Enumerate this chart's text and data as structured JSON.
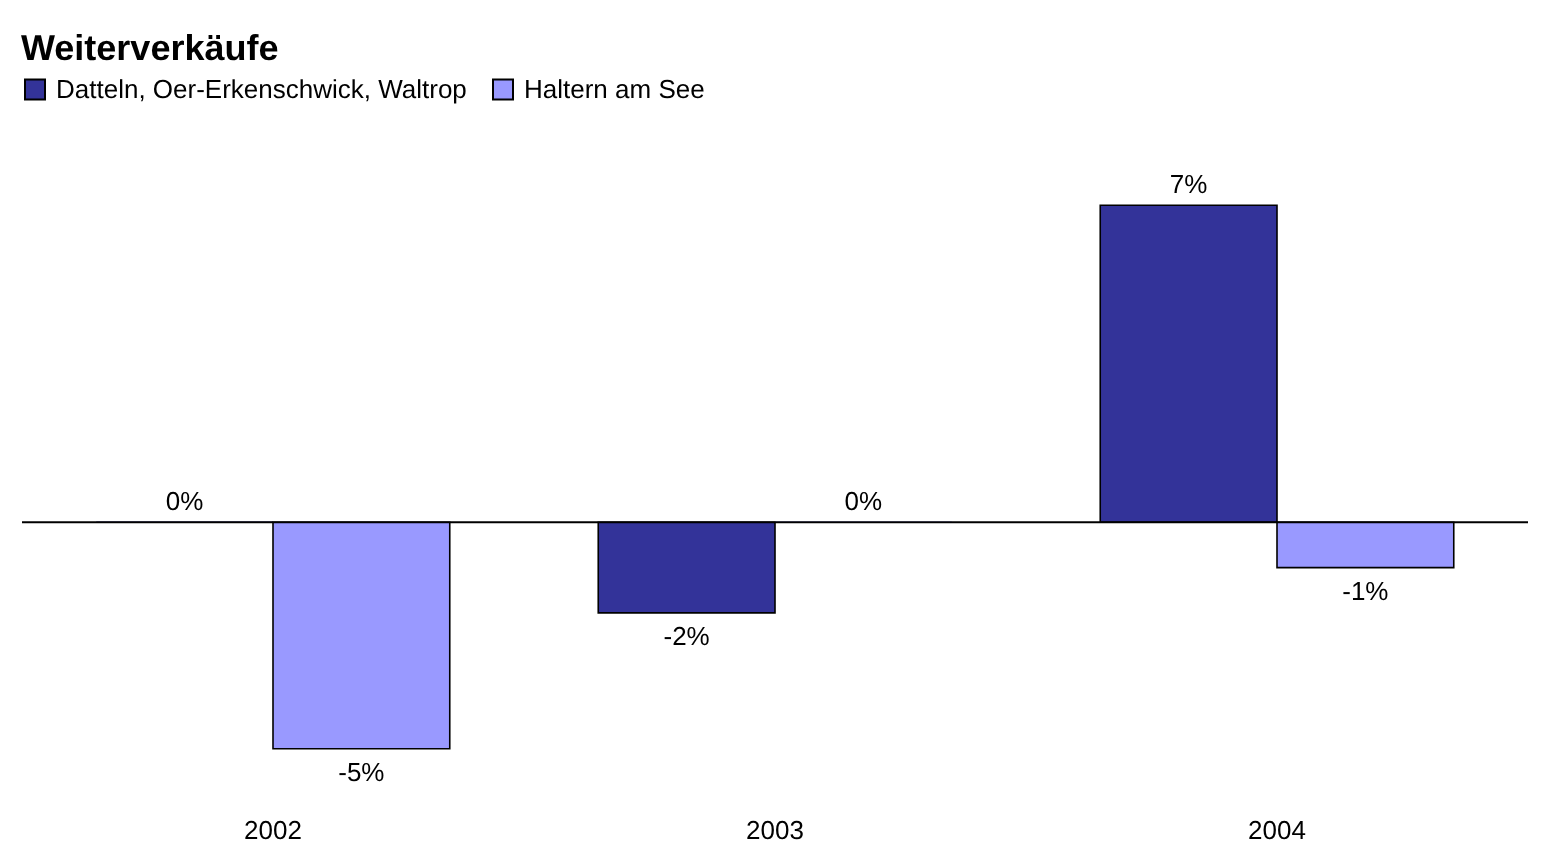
{
  "chart_data": {
    "type": "bar",
    "title": "Weiterverkäufe",
    "categories": [
      "2002",
      "2003",
      "2004"
    ],
    "series": [
      {
        "name": "Datteln, Oer-Erkenschwick, Waltrop",
        "color": "#333399",
        "values": [
          0,
          -2,
          7
        ],
        "value_labels": [
          "0%",
          "-2%",
          "7%"
        ]
      },
      {
        "name": "Haltern am See",
        "color": "#9999ff",
        "values": [
          -5,
          0,
          -1
        ],
        "value_labels": [
          "-5%",
          "0%",
          "-1%"
        ]
      }
    ],
    "legend": "top",
    "grid": false
  }
}
